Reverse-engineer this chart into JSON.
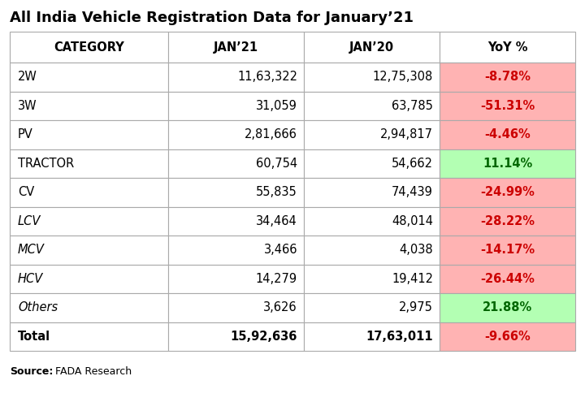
{
  "title": "All India Vehicle Registration Data for January’21",
  "source_bold": "Source:",
  "source_normal": " FADA Research",
  "columns": [
    "CATEGORY",
    "JAN’21",
    "JAN’20",
    "YoY %"
  ],
  "rows": [
    [
      "2W",
      "11,63,322",
      "12,75,308",
      "-8.78%"
    ],
    [
      "3W",
      "31,059",
      "63,785",
      "-51.31%"
    ],
    [
      "PV",
      "2,81,666",
      "2,94,817",
      "-4.46%"
    ],
    [
      "TRACTOR",
      "60,754",
      "54,662",
      "11.14%"
    ],
    [
      "CV",
      "55,835",
      "74,439",
      "-24.99%"
    ],
    [
      "LCV",
      "34,464",
      "48,014",
      "-28.22%"
    ],
    [
      "MCV",
      "3,466",
      "4,038",
      "-14.17%"
    ],
    [
      "HCV",
      "14,279",
      "19,412",
      "-26.44%"
    ],
    [
      "Others",
      "3,626",
      "2,975",
      "21.88%"
    ]
  ],
  "total_row": [
    "Total",
    "15,92,636",
    "17,63,011",
    "-9.66%"
  ],
  "yoy_bg_colors": [
    "#ffb3b3",
    "#ffb3b3",
    "#ffb3b3",
    "#b3ffb3",
    "#ffb3b3",
    "#ffb3b3",
    "#ffb3b3",
    "#ffb3b3",
    "#b3ffb3"
  ],
  "total_yoy_bg": "#ffb3b3",
  "italic_rows": [
    5,
    6,
    7,
    8
  ],
  "border_color": "#aaaaaa",
  "text_color_neg": "#cc0000",
  "text_color_pos": "#006600",
  "text_color_normal": "#000000",
  "title_fontsize": 13,
  "header_fontsize": 10.5,
  "cell_fontsize": 10.5,
  "total_fontsize": 10.5,
  "source_fontsize": 9
}
